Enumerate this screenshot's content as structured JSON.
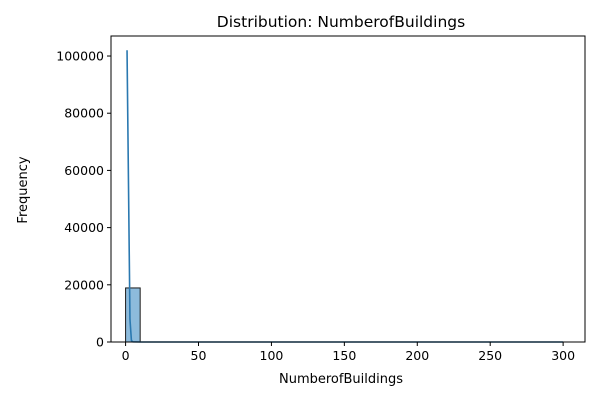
{
  "chart_data": {
    "type": "bar",
    "title": "Distribution: NumberofBuildings",
    "xlabel": "NumberofBuildings",
    "ylabel": "Frequency",
    "xlim": [
      -10,
      315
    ],
    "ylim": [
      0,
      107000
    ],
    "xticks": [
      0,
      50,
      100,
      150,
      200,
      250,
      300
    ],
    "yticks": [
      0,
      20000,
      40000,
      60000,
      80000,
      100000
    ],
    "grid": false,
    "legend": "none",
    "histogram": {
      "bin_edges": [
        0,
        10,
        20,
        30,
        40,
        50,
        60,
        70,
        80,
        90,
        100,
        110,
        120,
        130,
        140,
        150,
        160,
        170,
        180,
        190,
        200,
        210,
        220,
        230,
        240,
        250,
        260,
        270,
        280,
        290,
        300
      ],
      "counts": [
        18900,
        2,
        1,
        0,
        0,
        0,
        0,
        0,
        0,
        0,
        0,
        0,
        0,
        0,
        0,
        0,
        0,
        0,
        0,
        0,
        0,
        0,
        0,
        0,
        0,
        0,
        0,
        0,
        0,
        1
      ]
    },
    "kde_line": {
      "x": [
        1,
        2,
        3,
        4,
        5,
        10,
        50,
        100,
        150,
        200,
        250,
        300
      ],
      "y": [
        102000,
        55000,
        8000,
        500,
        50,
        0,
        0,
        0,
        0,
        0,
        0,
        0
      ]
    },
    "colors": {
      "bar_fill": "#8dbbdc",
      "bar_edge": "#1a1a1a",
      "line": "#2a78b0"
    }
  }
}
